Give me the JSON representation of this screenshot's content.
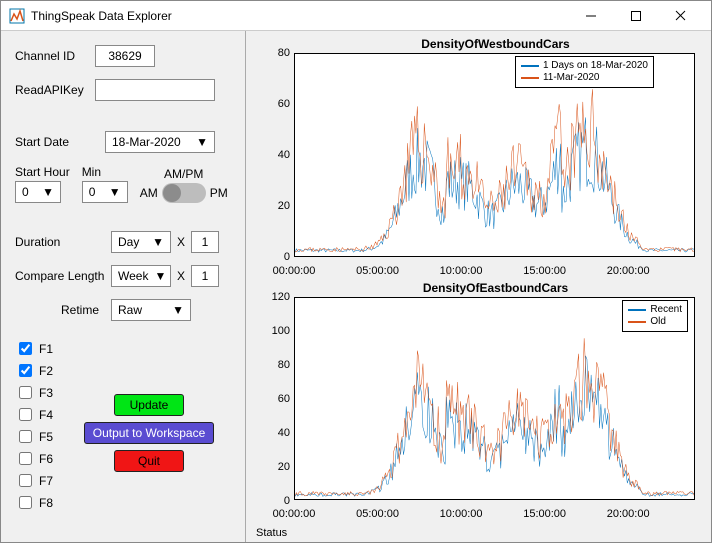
{
  "window": {
    "title": "ThingSpeak Data Explorer"
  },
  "colors": {
    "series1": "#0072bd",
    "series2": "#d95319",
    "btnGreen": "#00e515",
    "btnPurple": "#5a4cd1",
    "btnRed": "#f01515"
  },
  "form": {
    "channelId": {
      "label": "Channel ID",
      "value": "38629"
    },
    "readApiKey": {
      "label": "ReadAPIKey",
      "value": ""
    },
    "startDate": {
      "label": "Start Date",
      "value": "18-Mar-2020"
    },
    "startHour": {
      "label": "Start Hour",
      "value": "0"
    },
    "min": {
      "label": "Min",
      "value": "0"
    },
    "ampm": {
      "label": "AM/PM",
      "left": "AM",
      "right": "PM",
      "value": "AM"
    },
    "duration": {
      "label": "Duration",
      "unit": "Day",
      "x": "X",
      "value": "1"
    },
    "compare": {
      "label": "Compare Length",
      "unit": "Week",
      "x": "X",
      "value": "1"
    },
    "retime": {
      "label": "Retime",
      "value": "Raw"
    }
  },
  "fields": {
    "items": [
      {
        "label": "F1",
        "checked": true
      },
      {
        "label": "F2",
        "checked": true
      },
      {
        "label": "F3",
        "checked": false
      },
      {
        "label": "F4",
        "checked": false
      },
      {
        "label": "F5",
        "checked": false
      },
      {
        "label": "F6",
        "checked": false
      },
      {
        "label": "F7",
        "checked": false
      },
      {
        "label": "F8",
        "checked": false
      }
    ]
  },
  "buttons": {
    "update": "Update",
    "output": "Output to Workspace",
    "quit": "Quit"
  },
  "status": "Status",
  "chart1": {
    "title": "DensityOfWestboundCars",
    "ylim": [
      0,
      80
    ],
    "yticks": [
      0,
      20,
      40,
      60,
      80
    ],
    "xticks": [
      "00:00:00",
      "05:00:00",
      "10:00:00",
      "15:00:00",
      "20:00:00"
    ],
    "legend": [
      "1 Days on 18-Mar-2020",
      "11-Mar-2020"
    ]
  },
  "chart2": {
    "title": "DensityOfEastboundCars",
    "ylim": [
      0,
      120
    ],
    "yticks": [
      0,
      20,
      40,
      60,
      80,
      100,
      120
    ],
    "xticks": [
      "00:00:00",
      "05:00:00",
      "10:00:00",
      "15:00:00",
      "20:00:00"
    ],
    "legend": [
      "Recent",
      "Old"
    ]
  }
}
